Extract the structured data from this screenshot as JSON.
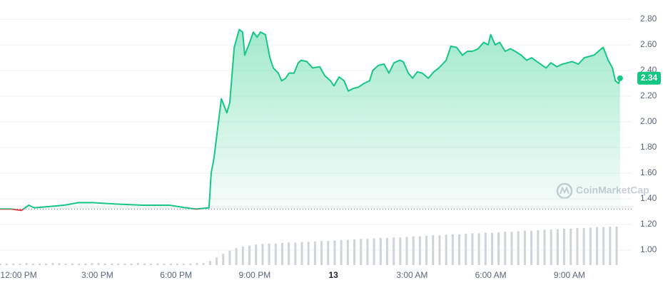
{
  "chart_data": {
    "type": "line",
    "watermark": "CoinMarketCap",
    "x": [
      11.29,
      11.71,
      12.11,
      12.39,
      12.6,
      13.2,
      13.74,
      14.28,
      14.83,
      15.65,
      16.73,
      17.74,
      18.37,
      18.77,
      19.26,
      19.34,
      19.45,
      19.59,
      19.73,
      19.94,
      20.05,
      20.22,
      20.41,
      20.54,
      20.62,
      20.81,
      20.95,
      21.09,
      21.22,
      21.41,
      21.58,
      21.71,
      21.9,
      22.03,
      22.18,
      22.31,
      22.5,
      22.66,
      22.77,
      22.99,
      23.21,
      23.48,
      23.67,
      23.89,
      24.02,
      24.22,
      24.41,
      24.57,
      24.75,
      24.95,
      25.17,
      25.38,
      25.5,
      25.71,
      25.93,
      26.12,
      26.31,
      26.53,
      26.66,
      26.86,
      27.02,
      27.2,
      27.39,
      27.62,
      27.83,
      28.02,
      28.3,
      28.48,
      28.7,
      28.92,
      29.11,
      29.3,
      29.52,
      29.73,
      29.9,
      30.0,
      30.17,
      30.34,
      30.55,
      30.75,
      30.93,
      31.16,
      31.37,
      31.56,
      31.76,
      31.97,
      32.11,
      32.29,
      32.52,
      32.73,
      32.92,
      33.11,
      33.34,
      33.57,
      33.75,
      33.94,
      34.16,
      34.29,
      34.48,
      34.64,
      34.75,
      34.88,
      34.93
    ],
    "values": [
      1.32,
      1.32,
      1.31,
      1.35,
      1.33,
      1.34,
      1.35,
      1.37,
      1.37,
      1.36,
      1.35,
      1.35,
      1.33,
      1.32,
      1.33,
      1.6,
      1.72,
      1.95,
      2.18,
      2.07,
      2.15,
      2.58,
      2.72,
      2.7,
      2.52,
      2.62,
      2.7,
      2.66,
      2.7,
      2.68,
      2.5,
      2.42,
      2.38,
      2.32,
      2.34,
      2.38,
      2.38,
      2.46,
      2.48,
      2.47,
      2.42,
      2.43,
      2.36,
      2.32,
      2.28,
      2.35,
      2.32,
      2.24,
      2.26,
      2.27,
      2.3,
      2.32,
      2.4,
      2.44,
      2.45,
      2.38,
      2.46,
      2.48,
      2.47,
      2.38,
      2.34,
      2.39,
      2.38,
      2.34,
      2.39,
      2.42,
      2.48,
      2.59,
      2.58,
      2.52,
      2.55,
      2.55,
      2.57,
      2.62,
      2.6,
      2.68,
      2.6,
      2.62,
      2.55,
      2.57,
      2.55,
      2.52,
      2.48,
      2.5,
      2.47,
      2.44,
      2.42,
      2.46,
      2.43,
      2.45,
      2.46,
      2.47,
      2.45,
      2.5,
      2.51,
      2.52,
      2.56,
      2.58,
      2.48,
      2.42,
      2.32,
      2.3,
      2.34
    ],
    "color_up": "#16c784",
    "color_down": "#ea3943",
    "baseline": 1.32,
    "volume": {
      "color": "#cfd3dc",
      "axis": "y2",
      "x": [
        11.3,
        11.55,
        11.8,
        12.05,
        12.3,
        12.55,
        12.8,
        13.05,
        13.3,
        13.55,
        13.8,
        14.05,
        14.3,
        14.55,
        14.8,
        15.05,
        15.3,
        15.55,
        15.8,
        16.05,
        16.3,
        16.55,
        16.8,
        17.05,
        17.3,
        17.55,
        17.8,
        18.05,
        18.3,
        18.55,
        18.8,
        19.05,
        19.3,
        19.55,
        19.8,
        20.05,
        20.3,
        20.55,
        20.8,
        21.05,
        21.3,
        21.55,
        21.8,
        22.05,
        22.3,
        22.55,
        22.8,
        23.05,
        23.3,
        23.55,
        23.8,
        24.05,
        24.3,
        24.55,
        24.8,
        25.05,
        25.3,
        25.55,
        25.8,
        26.05,
        26.3,
        26.55,
        26.8,
        27.05,
        27.3,
        27.55,
        27.8,
        28.05,
        28.3,
        28.55,
        28.8,
        29.05,
        29.3,
        29.55,
        29.8,
        30.05,
        30.3,
        30.55,
        30.8,
        31.05,
        31.3,
        31.55,
        31.8,
        32.05,
        32.3,
        32.55,
        32.8,
        33.05,
        33.3,
        33.55,
        33.8,
        34.05,
        34.3,
        34.55,
        34.8
      ],
      "values": [
        3,
        3,
        3,
        3,
        4,
        3,
        3,
        3,
        4,
        4,
        3,
        3,
        3,
        3,
        4,
        4,
        3,
        3,
        3,
        3,
        3,
        4,
        3,
        3,
        3,
        3,
        3,
        3,
        3,
        3,
        4,
        4,
        8,
        15,
        22,
        28,
        33,
        36,
        38,
        40,
        41,
        42,
        42,
        43,
        44,
        44,
        45,
        45,
        46,
        47,
        47,
        48,
        49,
        49,
        50,
        51,
        51,
        52,
        53,
        53,
        54,
        54,
        55,
        56,
        56,
        57,
        58,
        58,
        59,
        60,
        60,
        61,
        62,
        62,
        63,
        63,
        64,
        65,
        65,
        66,
        67,
        67,
        68,
        69,
        69,
        70,
        71,
        71,
        72,
        72,
        73,
        74,
        74,
        75,
        75
      ]
    },
    "xlim": [
      11.29,
      35.37
    ],
    "xticks": [
      {
        "value": 12,
        "label": "12:00 PM"
      },
      {
        "value": 15,
        "label": "3:00 PM"
      },
      {
        "value": 18,
        "label": "6:00 PM"
      },
      {
        "value": 21,
        "label": "9:00 PM"
      },
      {
        "value": 24,
        "label": "13"
      },
      {
        "value": 27,
        "label": "3:00 AM"
      },
      {
        "value": 30,
        "label": "6:00 AM"
      },
      {
        "value": 33,
        "label": "9:00 AM"
      }
    ],
    "ylim": [
      0.9,
      2.92
    ],
    "yticks": [
      {
        "value": 1.0,
        "label": "1.00"
      },
      {
        "value": 1.2,
        "label": "1.20"
      },
      {
        "value": 1.4,
        "label": "1.40"
      },
      {
        "value": 1.6,
        "label": "1.60"
      },
      {
        "value": 1.8,
        "label": "1.80"
      },
      {
        "value": 2.0,
        "label": "2.00"
      },
      {
        "value": 2.2,
        "label": "2.20"
      },
      {
        "value": 2.4,
        "label": "2.40"
      },
      {
        "value": 2.6,
        "label": "2.60"
      },
      {
        "value": 2.8,
        "label": "2.80"
      }
    ],
    "y2lim": [
      0,
      100
    ],
    "grid": true
  }
}
